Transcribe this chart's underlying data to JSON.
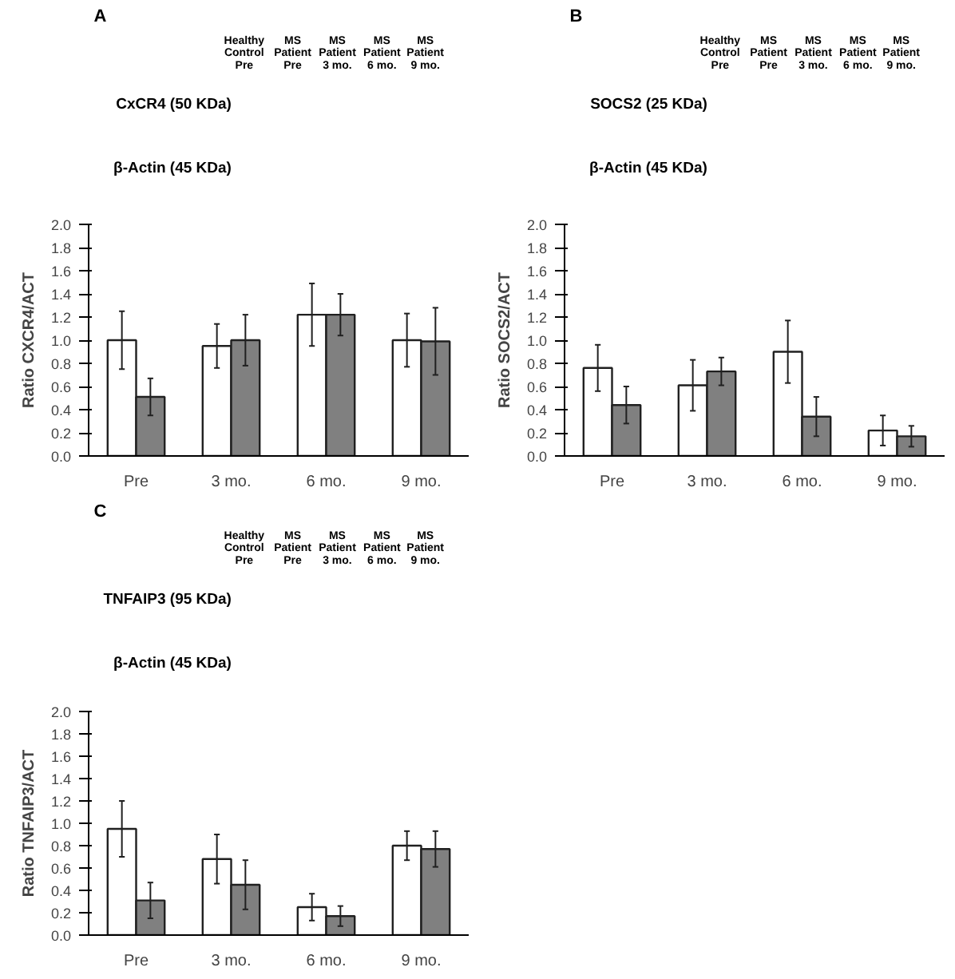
{
  "chart_data": [
    {
      "type": "bar",
      "ylabel": "Ratio CXCR4/ACT",
      "categories": [
        "Pre",
        "3 mo.",
        "6 mo.",
        "9 mo."
      ],
      "ylim": [
        0,
        2.0
      ],
      "yticks": [
        {
          "value": 0,
          "label": "0.0"
        },
        0.2,
        0.4,
        0.6,
        0.8,
        {
          "value": 1,
          "label": "1.0"
        },
        1.2,
        1.4,
        1.6,
        1.8,
        {
          "value": 2,
          "label": "2.0"
        }
      ],
      "grid": false,
      "annotations": [
        "A",
        "Healthy\nControl\nPre",
        "MS\nPatient\nPre",
        "MS\nPatient\n3 mo.",
        "MS\nPatient\n6 mo.",
        "MS\nPatient\n9 mo.",
        "CxCR4 (50 KDa)",
        "β-Actin (45 KDa)"
      ],
      "series": [
        {
          "color": "#ffffff",
          "values": [
            1.0,
            0.95,
            1.22,
            1.0
          ],
          "errors": [
            0.25,
            0.19,
            0.27,
            0.23
          ]
        },
        {
          "color": "#808080",
          "values": [
            0.51,
            1.0,
            1.22,
            0.99
          ],
          "errors": [
            0.16,
            0.22,
            0.18,
            0.29
          ]
        }
      ]
    },
    {
      "type": "bar",
      "ylabel": "Ratio SOCS2/ACT",
      "categories": [
        "Pre",
        "3 mo.",
        "6 mo.",
        "9 mo."
      ],
      "ylim": [
        0,
        2.0
      ],
      "yticks": [
        {
          "value": 0,
          "label": "0.0"
        },
        0.2,
        0.4,
        0.6,
        0.8,
        {
          "value": 1,
          "label": "1.0"
        },
        1.2,
        1.4,
        1.6,
        1.8,
        {
          "value": 2,
          "label": "2.0"
        }
      ],
      "grid": false,
      "annotations": [
        "B",
        "Healthy\nControl\nPre",
        "MS\nPatient\nPre",
        "MS\nPatient\n3 mo.",
        "MS\nPatient\n6 mo.",
        "MS\nPatient\n9 mo.",
        "SOCS2 (25 KDa)",
        "β-Actin (45 KDa)"
      ],
      "series": [
        {
          "color": "#ffffff",
          "values": [
            0.76,
            0.61,
            0.9,
            0.22
          ],
          "errors": [
            0.2,
            0.22,
            0.27,
            0.13
          ]
        },
        {
          "color": "#808080",
          "values": [
            0.44,
            0.73,
            0.34,
            0.17
          ],
          "errors": [
            0.16,
            0.12,
            0.17,
            0.09
          ]
        }
      ]
    },
    {
      "type": "bar",
      "ylabel": "Ratio TNFAIP3/ACT",
      "categories": [
        "Pre",
        "3 mo.",
        "6 mo.",
        "9 mo."
      ],
      "ylim": [
        0,
        2.0
      ],
      "yticks": [
        {
          "value": 0,
          "label": "0.0"
        },
        0.2,
        0.4,
        0.6,
        0.8,
        {
          "value": 1,
          "label": "1.0"
        },
        1.2,
        1.4,
        1.6,
        1.8,
        {
          "value": 2,
          "label": "2.0"
        }
      ],
      "grid": false,
      "annotations": [
        "C",
        "Healthy\nControl\nPre",
        "MS\nPatient\nPre",
        "MS\nPatient\n3 mo.",
        "MS\nPatient\n6 mo.",
        "MS\nPatient\n9 mo.",
        "TNFAIP3 (95 KDa)",
        "β-Actin (45 KDa)"
      ],
      "series": [
        {
          "color": "#ffffff",
          "values": [
            0.95,
            0.68,
            0.25,
            0.8
          ],
          "errors": [
            0.25,
            0.22,
            0.12,
            0.13
          ]
        },
        {
          "color": "#808080",
          "values": [
            0.31,
            0.45,
            0.17,
            0.77
          ],
          "errors": [
            0.16,
            0.22,
            0.09,
            0.16
          ]
        }
      ]
    }
  ]
}
